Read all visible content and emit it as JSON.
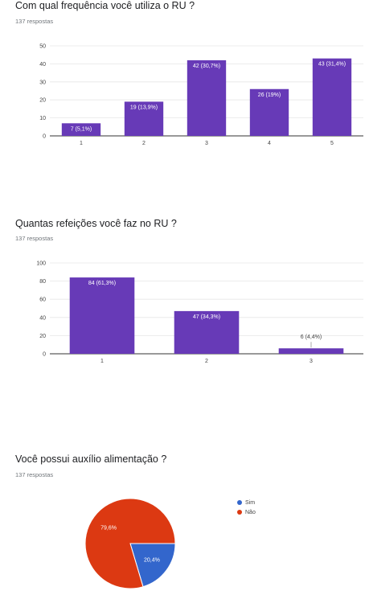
{
  "questions": [
    {
      "title": "Com qual frequência você utiliza o RU ?",
      "responses": "137 respostas"
    },
    {
      "title": "Quantas refeições você faz no RU ?",
      "responses": "137 respostas"
    },
    {
      "title": "Você possui auxílio alimentação ?",
      "responses": "137 respostas"
    }
  ],
  "colors": {
    "bar": "#673ab7",
    "sim": "#3366cc",
    "nao": "#dc3912"
  },
  "chart_data": [
    {
      "type": "bar",
      "categories": [
        "1",
        "2",
        "3",
        "4",
        "5"
      ],
      "values": [
        7,
        19,
        42,
        26,
        43
      ],
      "data_labels": [
        "7 (5,1%)",
        "19 (13,9%)",
        "42 (30,7%)",
        "26 (19%)",
        "43 (31,4%)"
      ],
      "yticks": [
        0,
        10,
        20,
        30,
        40,
        50
      ],
      "ylim": [
        0,
        50
      ]
    },
    {
      "type": "bar",
      "categories": [
        "1",
        "2",
        "3"
      ],
      "values": [
        84,
        47,
        6
      ],
      "data_labels": [
        "84 (61,3%)",
        "47 (34,3%)",
        "6 (4,4%)"
      ],
      "yticks": [
        0,
        20,
        40,
        60,
        80,
        100
      ],
      "ylim": [
        0,
        100
      ]
    },
    {
      "type": "pie",
      "labels": [
        "Sim",
        "Não"
      ],
      "values": [
        20.4,
        79.6
      ],
      "slice_labels": [
        "20,4%",
        "79,6%"
      ],
      "legend": "right"
    }
  ]
}
